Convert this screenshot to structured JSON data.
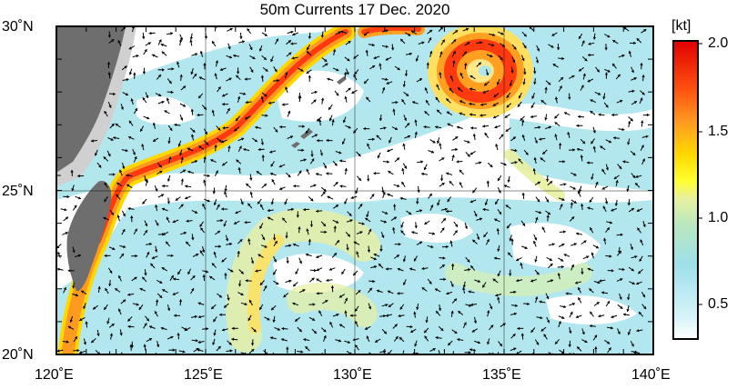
{
  "title": "50m Currents  17 Dec. 2020",
  "lat_labels": [
    "30˚N",
    "25˚N",
    "20˚N"
  ],
  "lon_labels": [
    "120˚E",
    "125˚E",
    "130˚E",
    "135˚E",
    "140˚E"
  ],
  "colorbar": {
    "unit": "[kt]",
    "ticks": [
      "2.0",
      "1.5",
      "1.0",
      "0.5"
    ],
    "colors": [
      "#ffffff",
      "#c8f0f8",
      "#9ee0ea",
      "#b8e8c0",
      "#e8f0a0",
      "#ffff40",
      "#ffd800",
      "#ffa020",
      "#ff6010",
      "#ff2000",
      "#e80000"
    ]
  }
}
